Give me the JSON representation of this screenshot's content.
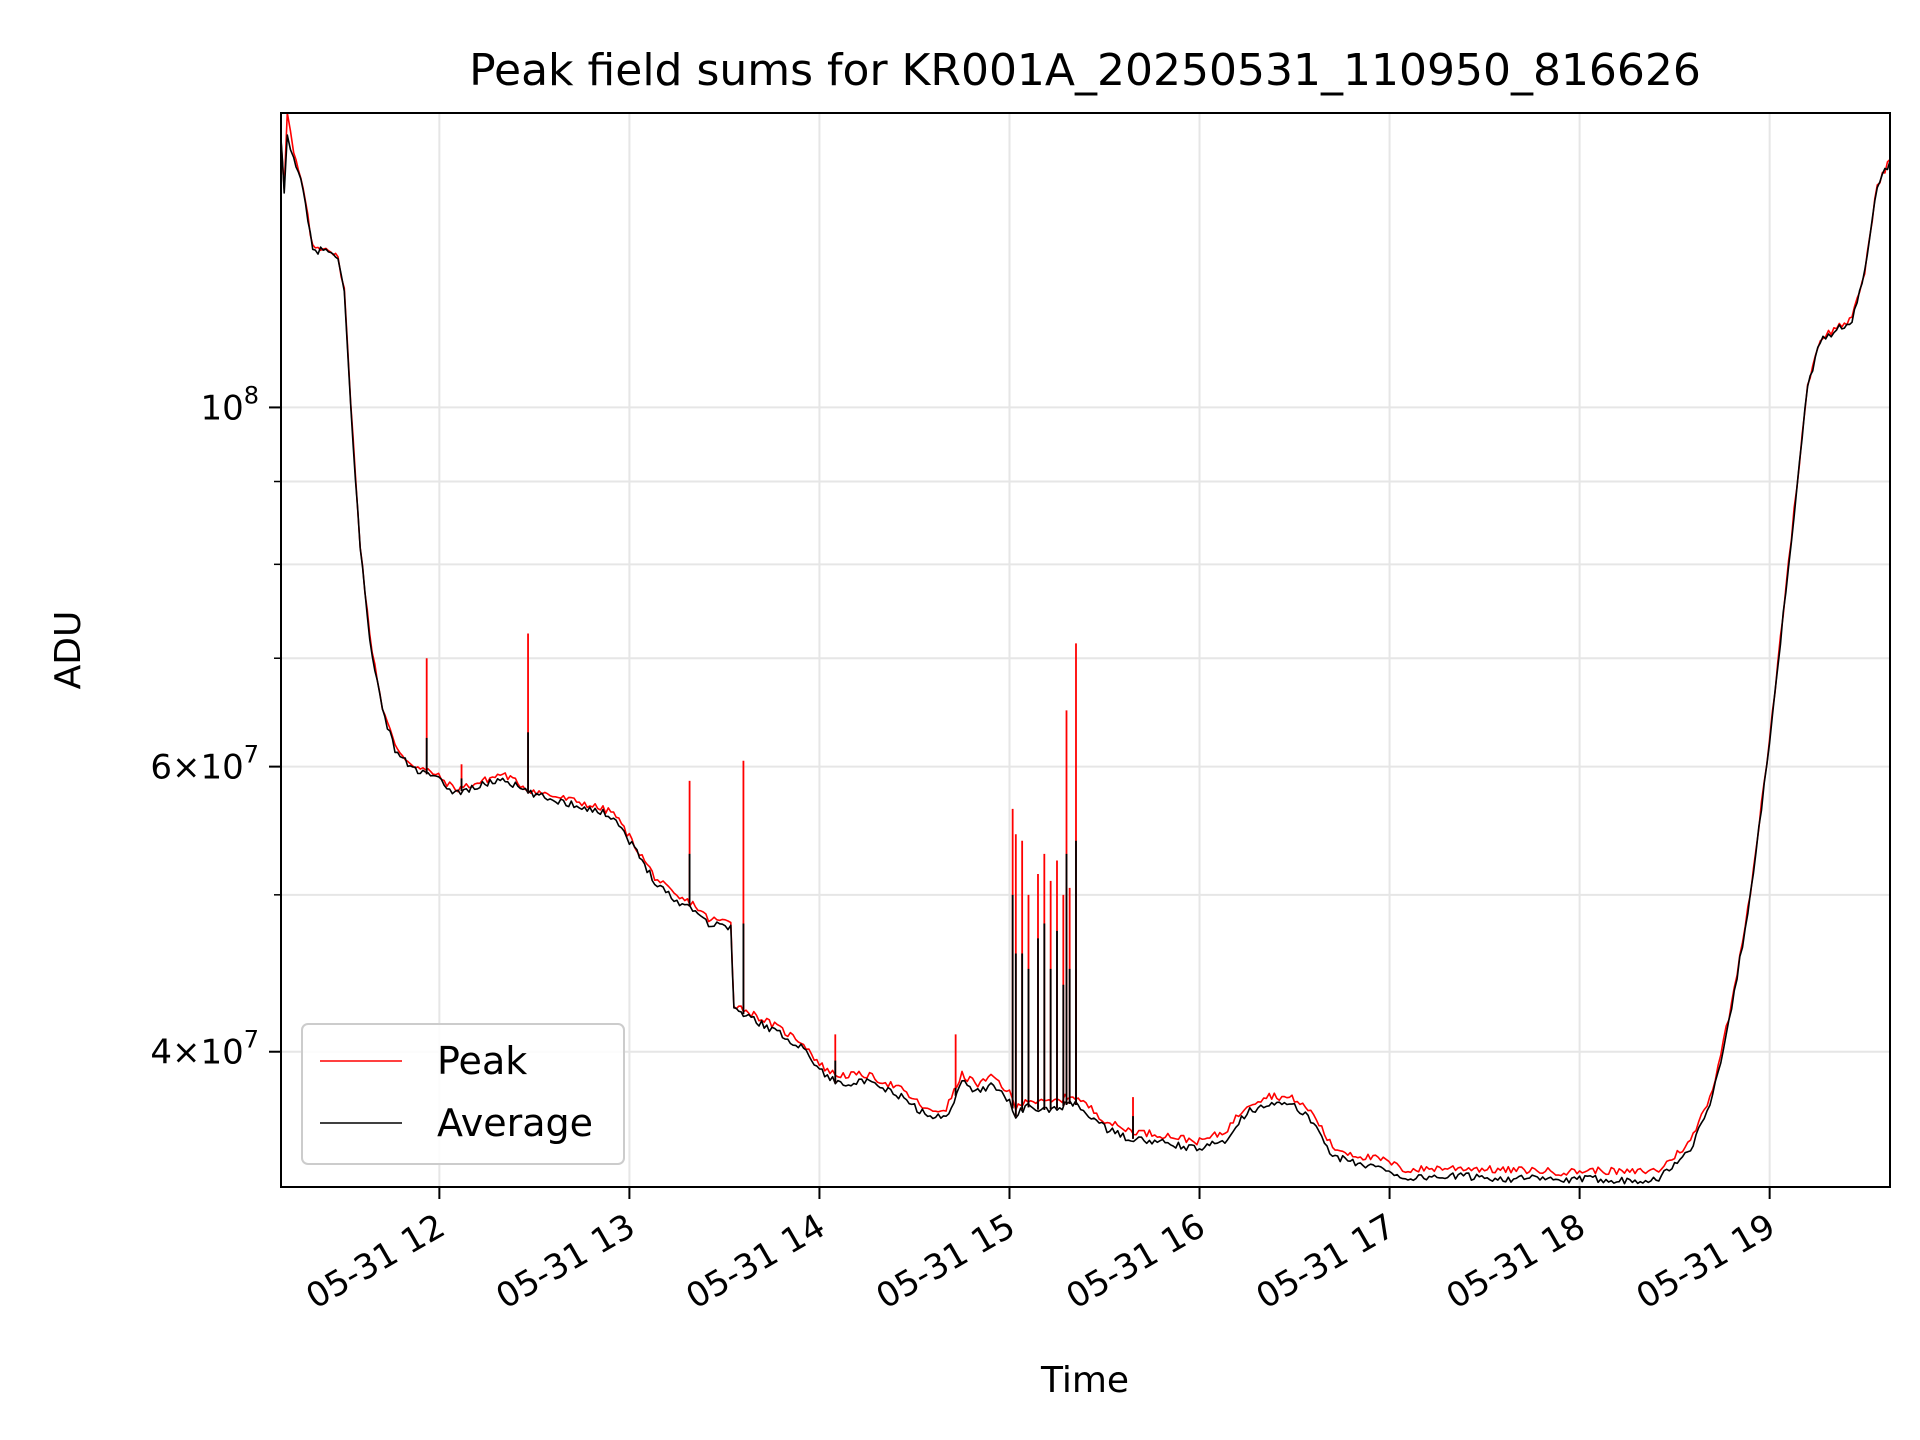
{
  "chart_data": {
    "type": "line",
    "title": "Peak field sums for KR001A_20250531_110950_816626",
    "xlabel": "Time",
    "ylabel": "ADU",
    "y_scale": "log",
    "grid": true,
    "legend_position": "lower-left",
    "x_range": [
      "2025-05-31 11:10",
      "2025-05-31 19:38"
    ],
    "y_range": [
      33000000,
      152000000
    ],
    "x_ticks": [
      {
        "value": "2025-05-31 12:00",
        "label": "05-31 12"
      },
      {
        "value": "2025-05-31 13:00",
        "label": "05-31 13"
      },
      {
        "value": "2025-05-31 14:00",
        "label": "05-31 14"
      },
      {
        "value": "2025-05-31 15:00",
        "label": "05-31 15"
      },
      {
        "value": "2025-05-31 16:00",
        "label": "05-31 16"
      },
      {
        "value": "2025-05-31 17:00",
        "label": "05-31 17"
      },
      {
        "value": "2025-05-31 18:00",
        "label": "05-31 18"
      },
      {
        "value": "2025-05-31 19:00",
        "label": "05-31 19"
      }
    ],
    "y_ticks_major": [
      {
        "value": 100000000,
        "base": "10",
        "exp": "8",
        "mult": ""
      },
      {
        "value": 60000000,
        "base": "10",
        "exp": "7",
        "mult": "6"
      },
      {
        "value": 40000000,
        "base": "10",
        "exp": "7",
        "mult": "4"
      }
    ],
    "y_ticks_minor": [
      50000000,
      70000000,
      80000000,
      90000000
    ],
    "series": [
      {
        "name": "Average",
        "color": "#000000",
        "x": [
          "11:10",
          "11:11",
          "11:12",
          "11:14",
          "11:17",
          "11:20",
          "11:25",
          "11:28",
          "11:30",
          "11:32",
          "11:35",
          "11:38",
          "11:42",
          "11:46",
          "11:50",
          "11:54",
          "11:58",
          "12:05",
          "12:12",
          "12:20",
          "12:28",
          "12:35",
          "12:45",
          "12:55",
          "13:00",
          "13:08",
          "13:15",
          "13:20",
          "13:25",
          "13:32",
          "13:33",
          "13:36",
          "13:45",
          "13:55",
          "14:00",
          "14:05",
          "14:15",
          "14:25",
          "14:35",
          "14:40",
          "14:45",
          "14:50",
          "14:55",
          "15:00",
          "15:02",
          "15:05",
          "15:10",
          "15:15",
          "15:20",
          "15:25",
          "15:30",
          "15:35",
          "15:40",
          "15:50",
          "16:00",
          "16:08",
          "16:15",
          "16:22",
          "16:30",
          "16:36",
          "16:42",
          "16:50",
          "16:58",
          "17:05",
          "17:15",
          "17:25",
          "17:35",
          "17:45",
          "17:55",
          "18:05",
          "18:15",
          "18:25",
          "18:35",
          "18:42",
          "18:48",
          "18:54",
          "19:00",
          "19:06",
          "19:12",
          "19:16",
          "19:22",
          "19:26",
          "19:30",
          "19:34",
          "19:38"
        ],
        "values": [
          146000000,
          136000000,
          147000000,
          143000000,
          136000000,
          125000000,
          125000000,
          123000000,
          118000000,
          100000000,
          82000000,
          72000000,
          65000000,
          61500000,
          60200000,
          59500000,
          59200000,
          57800000,
          58300000,
          59000000,
          57800000,
          57300000,
          56700000,
          55900000,
          54000000,
          51000000,
          49500000,
          49100000,
          48000000,
          47800000,
          42500000,
          42200000,
          41300000,
          40200000,
          39000000,
          38300000,
          38300000,
          37600000,
          36400000,
          36500000,
          38300000,
          37800000,
          38200000,
          37300000,
          36500000,
          37000000,
          36800000,
          36900000,
          37200000,
          36600000,
          35900000,
          35500000,
          35300000,
          35100000,
          34800000,
          35300000,
          36700000,
          37200000,
          37000000,
          36200000,
          34500000,
          34100000,
          33900000,
          33400000,
          33500000,
          33500000,
          33400000,
          33400000,
          33300000,
          33400000,
          33300000,
          33400000,
          34800000,
          37500000,
          42500000,
          50000000,
          62000000,
          80000000,
          103000000,
          110000000,
          112000000,
          113000000,
          121000000,
          137000000,
          142000000
        ]
      },
      {
        "name": "Peak",
        "color": "#ff0000",
        "x": [
          "11:10",
          "11:11",
          "11:12",
          "11:14",
          "11:17",
          "11:20",
          "11:25",
          "11:28",
          "11:30",
          "11:32",
          "11:35",
          "11:38",
          "11:42",
          "11:46",
          "11:50",
          "11:54",
          "11:58",
          "12:05",
          "12:12",
          "12:20",
          "12:28",
          "12:35",
          "12:45",
          "12:55",
          "13:00",
          "13:08",
          "13:15",
          "13:20",
          "13:25",
          "13:32",
          "13:33",
          "13:36",
          "13:45",
          "13:55",
          "14:00",
          "14:05",
          "14:15",
          "14:25",
          "14:35",
          "14:40",
          "14:45",
          "14:50",
          "14:55",
          "15:00",
          "15:02",
          "15:05",
          "15:10",
          "15:15",
          "15:20",
          "15:25",
          "15:30",
          "15:35",
          "15:40",
          "15:50",
          "16:00",
          "16:08",
          "16:15",
          "16:22",
          "16:30",
          "16:36",
          "16:42",
          "16:50",
          "16:58",
          "17:05",
          "17:15",
          "17:25",
          "17:35",
          "17:45",
          "17:55",
          "18:05",
          "18:15",
          "18:25",
          "18:35",
          "18:42",
          "18:48",
          "18:54",
          "19:00",
          "19:06",
          "19:12",
          "19:16",
          "19:22",
          "19:26",
          "19:30",
          "19:34",
          "19:38"
        ],
        "values": [
          146500000,
          137000000,
          152000000,
          143500000,
          136500000,
          125500000,
          125500000,
          123500000,
          118500000,
          100500000,
          82300000,
          72300000,
          65300000,
          61800000,
          60500000,
          59800000,
          59500000,
          58100000,
          58600000,
          59400000,
          58100000,
          57600000,
          57000000,
          56200000,
          54300000,
          51300000,
          49800000,
          49400000,
          48300000,
          48100000,
          42800000,
          42500000,
          41600000,
          40500000,
          39300000,
          38700000,
          38700000,
          38000000,
          36700000,
          36900000,
          38700000,
          38200000,
          38600000,
          37700000,
          36900000,
          37400000,
          37200000,
          37300000,
          37600000,
          37000000,
          36300000,
          35900000,
          35700000,
          35500000,
          35200000,
          35700000,
          37100000,
          37600000,
          37400000,
          36600000,
          34900000,
          34500000,
          34300000,
          33800000,
          33900000,
          33900000,
          33800000,
          33800000,
          33700000,
          33800000,
          33700000,
          33800000,
          35200000,
          37900000,
          42800000,
          50300000,
          62300000,
          80300000,
          103300000,
          110300000,
          112300000,
          113300000,
          121300000,
          137300000,
          142300000
        ]
      }
    ],
    "spikes": [
      {
        "time": "11:56",
        "peak": 70000000,
        "average": 62500000
      },
      {
        "time": "12:07",
        "peak": 60200000,
        "average": 59000000
      },
      {
        "time": "12:28",
        "peak": 72500000,
        "average": 63000000
      },
      {
        "time": "13:19",
        "peak": 58800000,
        "average": 53000000
      },
      {
        "time": "13:36",
        "peak": 60500000,
        "average": 48000000
      },
      {
        "time": "14:05",
        "peak": 41000000,
        "average": 39500000
      },
      {
        "time": "14:43",
        "peak": 41000000,
        "average": 38000000
      },
      {
        "time": "15:01",
        "peak": 56500000,
        "average": 50000000
      },
      {
        "time": "15:02",
        "peak": 54500000,
        "average": 46000000
      },
      {
        "time": "15:04",
        "peak": 54000000,
        "average": 46000000
      },
      {
        "time": "15:06",
        "peak": 50000000,
        "average": 45000000
      },
      {
        "time": "15:09",
        "peak": 51500000,
        "average": 47000000
      },
      {
        "time": "15:11",
        "peak": 53000000,
        "average": 48000000
      },
      {
        "time": "15:13",
        "peak": 51000000,
        "average": 45000000
      },
      {
        "time": "15:15",
        "peak": 52500000,
        "average": 47500000
      },
      {
        "time": "15:17",
        "peak": 50000000,
        "average": 44000000
      },
      {
        "time": "15:19",
        "peak": 50500000,
        "average": 45000000
      },
      {
        "time": "15:21",
        "peak": 45000000,
        "average": 41000000
      },
      {
        "time": "15:18",
        "peak": 65000000,
        "average": 53000000
      },
      {
        "time": "15:21",
        "peak": 71500000,
        "average": 54000000
      },
      {
        "time": "15:39",
        "peak": 37500000,
        "average": 36500000
      }
    ]
  }
}
